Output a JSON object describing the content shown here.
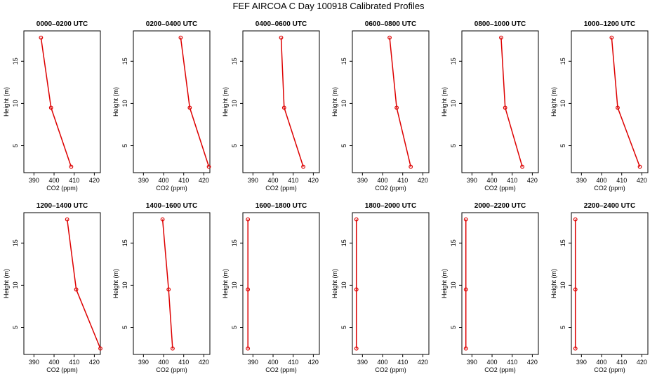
{
  "figure": {
    "title": "FEF AIRCOA C  Day 100918  Calibrated Profiles",
    "line_color": "#dd0000",
    "frame_color": "#000000"
  },
  "chart_data": {
    "type": "line",
    "xlabel": "CO2 (ppm)",
    "ylabel": "Height (m)",
    "xlim": [
      385,
      423
    ],
    "ylim": [
      1.8,
      18.6
    ],
    "xticks": [
      390,
      400,
      410,
      420
    ],
    "yticks": [
      5,
      10,
      15
    ],
    "heights": [
      17.8,
      9.5,
      2.5
    ],
    "panels": [
      {
        "title": "0000–0200 UTC",
        "co2": [
          393.5,
          398.5,
          408.5
        ]
      },
      {
        "title": "0200–0400 UTC",
        "co2": [
          408.5,
          413.0,
          422.5
        ]
      },
      {
        "title": "0400–0600 UTC",
        "co2": [
          404.0,
          405.5,
          415.0
        ]
      },
      {
        "title": "0600–0800 UTC",
        "co2": [
          403.5,
          407.0,
          414.0
        ]
      },
      {
        "title": "0800–1000 UTC",
        "co2": [
          404.5,
          406.5,
          415.0
        ]
      },
      {
        "title": "1000–1200 UTC",
        "co2": [
          405.0,
          408.0,
          419.0
        ]
      },
      {
        "title": "1200–1400 UTC",
        "co2": [
          406.5,
          411.0,
          423.0
        ]
      },
      {
        "title": "1400–1600 UTC",
        "co2": [
          399.5,
          402.5,
          404.5
        ]
      },
      {
        "title": "1600–1800 UTC",
        "co2": [
          387.5,
          387.5,
          387.5
        ]
      },
      {
        "title": "1800–2000 UTC",
        "co2": [
          387.0,
          387.0,
          387.0
        ]
      },
      {
        "title": "2000–2200 UTC",
        "co2": [
          387.0,
          387.0,
          387.0
        ]
      },
      {
        "title": "2200–2400 UTC",
        "co2": [
          387.0,
          387.0,
          387.0
        ]
      }
    ]
  }
}
